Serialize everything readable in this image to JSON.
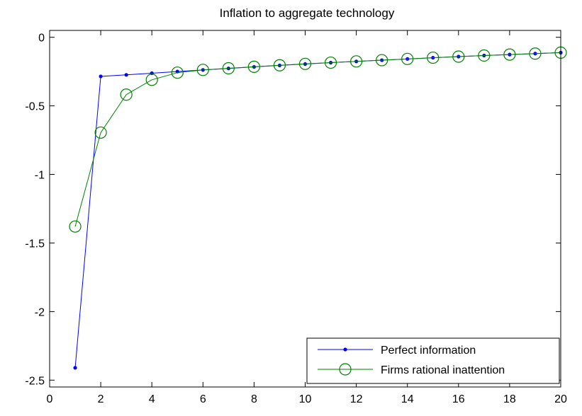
{
  "chart_data": {
    "type": "line",
    "title": "Inflation to aggregate technology",
    "xlabel": "",
    "ylabel": "",
    "xlim": [
      0,
      20
    ],
    "ylim": [
      -2.55,
      0.05
    ],
    "xticks": [
      0,
      2,
      4,
      6,
      8,
      10,
      12,
      14,
      16,
      18,
      20
    ],
    "yticks": [
      0,
      -0.5,
      -1,
      -1.5,
      -2,
      -2.5
    ],
    "xtick_labels": [
      "0",
      "2",
      "4",
      "6",
      "8",
      "10",
      "12",
      "14",
      "16",
      "18",
      "20"
    ],
    "ytick_labels": [
      "0",
      "-0.5",
      "-1",
      "-1.5",
      "-2",
      "-2.5"
    ],
    "grid": false,
    "legend_position": "bottom-right",
    "x": [
      1,
      2,
      3,
      4,
      5,
      6,
      7,
      8,
      9,
      10,
      11,
      12,
      13,
      14,
      15,
      16,
      17,
      18,
      19,
      20
    ],
    "series": [
      {
        "name": "Perfect information",
        "color": "#0000ff",
        "marker": "dot",
        "values": [
          -2.41,
          -0.285,
          -0.274,
          -0.262,
          -0.25,
          -0.238,
          -0.227,
          -0.216,
          -0.205,
          -0.195,
          -0.185,
          -0.176,
          -0.167,
          -0.158,
          -0.149,
          -0.141,
          -0.133,
          -0.126,
          -0.119,
          -0.112
        ]
      },
      {
        "name": "Firms rational inattention",
        "color": "#008000",
        "marker": "circle",
        "values": [
          -1.38,
          -0.695,
          -0.418,
          -0.31,
          -0.258,
          -0.238,
          -0.226,
          -0.215,
          -0.204,
          -0.194,
          -0.185,
          -0.176,
          -0.167,
          -0.158,
          -0.149,
          -0.141,
          -0.133,
          -0.126,
          -0.119,
          -0.112
        ]
      }
    ]
  }
}
